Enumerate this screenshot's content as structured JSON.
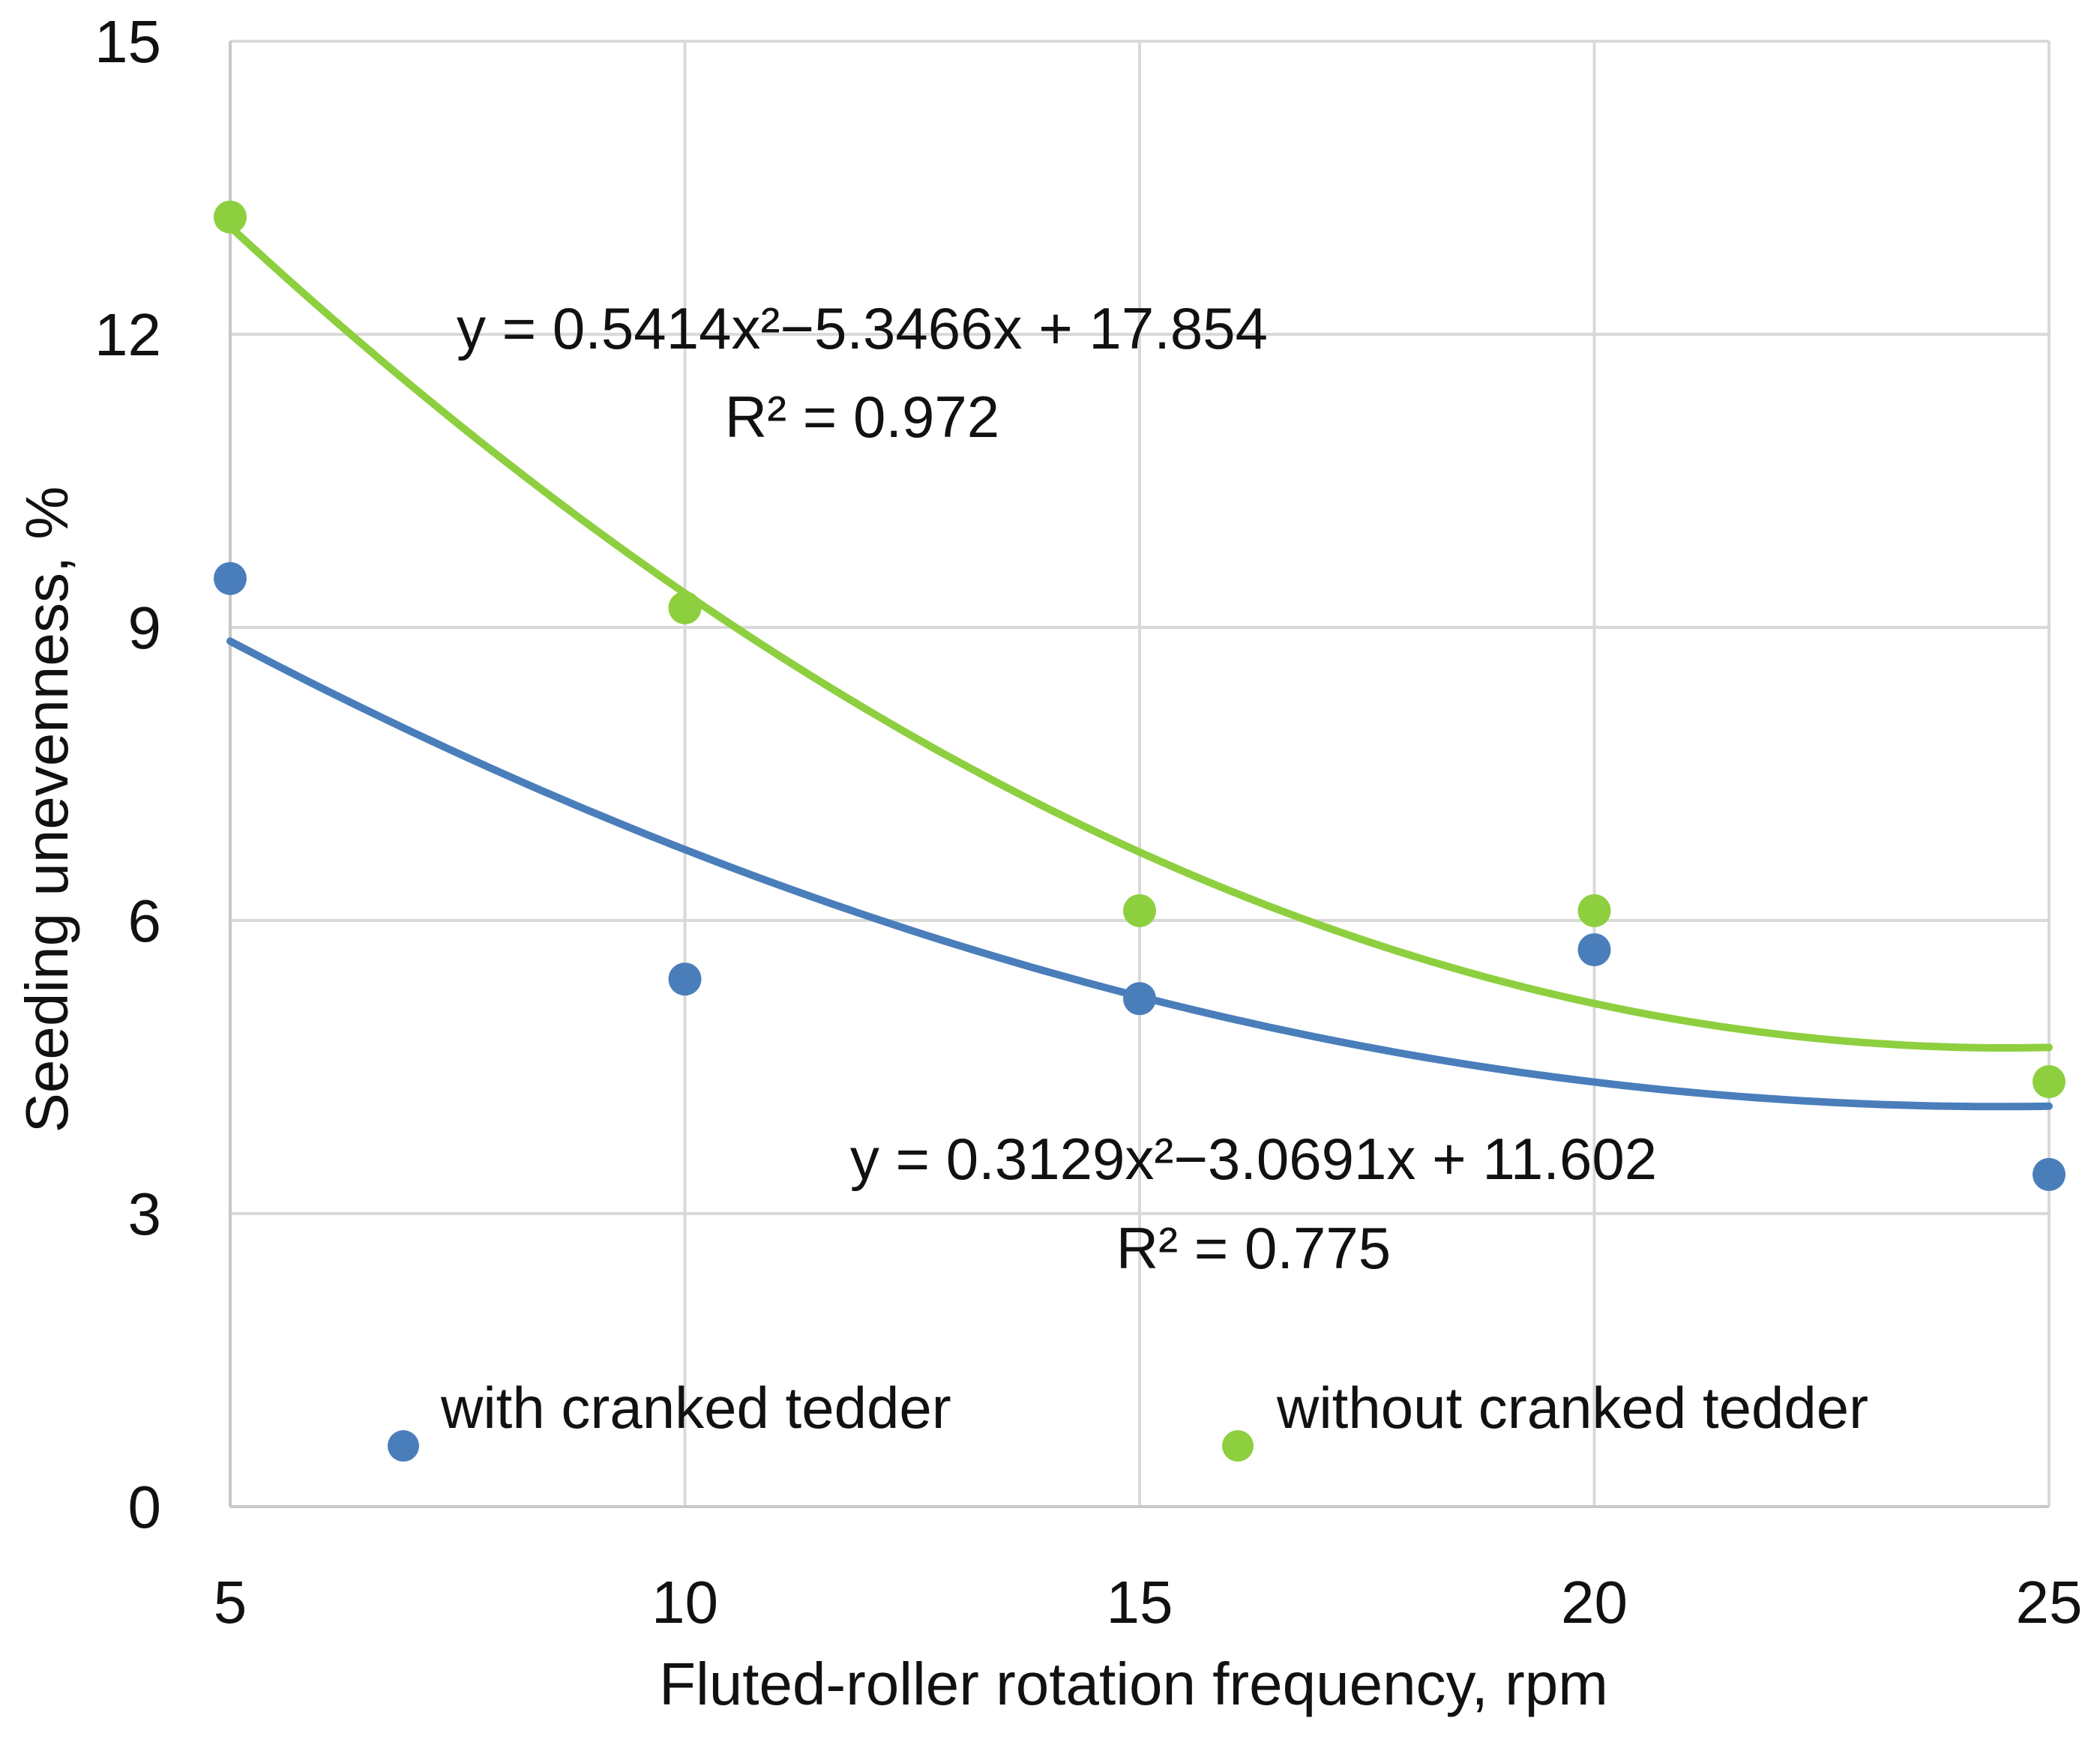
{
  "chart_data": {
    "type": "scatter",
    "title": "",
    "xlabel": "Fluted-roller rotation frequency, rpm",
    "ylabel": "Seeding unevenness, %",
    "xlim": [
      5,
      25
    ],
    "ylim": [
      0,
      15
    ],
    "xticks": [
      5,
      10,
      15,
      20,
      25
    ],
    "yticks": [
      0,
      3,
      6,
      9,
      12,
      15
    ],
    "grid": true,
    "legend_position": "bottom",
    "series": [
      {
        "name": "with cranked tedder",
        "color": "#4a7ebb",
        "x": [
          5,
          10,
          15,
          20,
          25
        ],
        "values": [
          9.5,
          5.4,
          5.2,
          5.7,
          3.4
        ],
        "trendline": {
          "type": "polynomial-2",
          "equation": "y = 0.3129x²−3.0691x + 11.602",
          "r2": "R² = 0.775",
          "curve_y": [
            8.85,
            6.75,
            5.2,
            4.35,
            4.1
          ]
        }
      },
      {
        "name": "without cranked tedder",
        "color": "#8dcf3f",
        "x": [
          5,
          10,
          15,
          20,
          25
        ],
        "values": [
          13.2,
          9.2,
          6.1,
          6.1,
          4.35
        ],
        "trendline": {
          "type": "polynomial-2",
          "equation": "y = 0.5414x²−5.3466x + 17.854",
          "r2": "R² = 0.972",
          "curve_y": [
            13.1,
            9.35,
            6.7,
            5.15,
            4.7
          ]
        }
      }
    ]
  }
}
